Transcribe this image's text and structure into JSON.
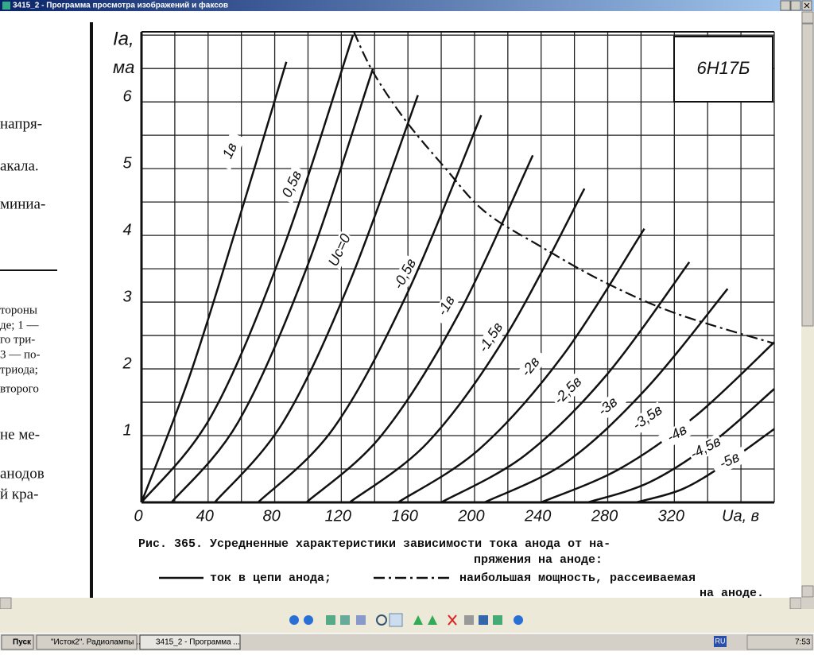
{
  "window": {
    "title": "3415_2 - Программа просмотра изображений и факсов"
  },
  "left_text": [
    "напря-",
    "акала.",
    "миниа-",
    "тороны",
    "де; 1 —",
    "го три-",
    "3 — по-",
    "триода;",
    "второго",
    "не ме-",
    "анодов",
    "й кра-"
  ],
  "chart_data": {
    "type": "line",
    "badge": "6Н17Б",
    "y_label": "Iа,",
    "y_unit": "ма",
    "x_label": "Uа, в",
    "color": "#111111",
    "xlim": [
      0,
      380
    ],
    "ylim": [
      0,
      7.05
    ],
    "xticks": [
      0,
      40,
      80,
      120,
      160,
      200,
      240,
      280,
      320
    ],
    "yticks": [
      1,
      2,
      3,
      4,
      5,
      6
    ],
    "grid": true,
    "series": [
      {
        "name": "1в",
        "x": [
          0,
          29,
          58,
          87
        ],
        "values": [
          0,
          1.9,
          4.2,
          6.6
        ]
      },
      {
        "name": "0,5в",
        "x": [
          0,
          42,
          85,
          127
        ],
        "values": [
          0,
          1.3,
          3.8,
          7.0
        ]
      },
      {
        "name": "Uс=0",
        "x": [
          18,
          58,
          99,
          139
        ],
        "values": [
          0,
          1.2,
          3.5,
          6.5
        ]
      },
      {
        "name": "-0,5в",
        "x": [
          44,
          85,
          125,
          166
        ],
        "values": [
          0,
          1.2,
          3.3,
          6.1
        ]
      },
      {
        "name": "-1в",
        "x": [
          70,
          115,
          159,
          204
        ],
        "values": [
          0,
          1.1,
          3.1,
          5.8
        ]
      },
      {
        "name": "-1,5в",
        "x": [
          99,
          144,
          190,
          235
        ],
        "values": [
          0,
          1.0,
          2.8,
          5.2
        ]
      },
      {
        "name": "-2в",
        "x": [
          125,
          172,
          219,
          266
        ],
        "values": [
          0,
          0.9,
          2.5,
          4.7
        ]
      },
      {
        "name": "-2,5в",
        "x": [
          154,
          203,
          253,
          302
        ],
        "values": [
          0,
          0.8,
          2.2,
          4.1
        ]
      },
      {
        "name": "-3в",
        "x": [
          180,
          230,
          279,
          329
        ],
        "values": [
          0,
          0.7,
          1.9,
          3.6
        ]
      },
      {
        "name": "-3,5в",
        "x": [
          206,
          255,
          303,
          352
        ],
        "values": [
          0,
          0.6,
          1.7,
          3.2
        ]
      },
      {
        "name": "-4в",
        "x": [
          240,
          287,
          333,
          380
        ],
        "values": [
          0,
          0.5,
          1.3,
          2.4
        ]
      },
      {
        "name": "-4,5в",
        "x": [
          268,
          305,
          343,
          380
        ],
        "values": [
          0,
          0.3,
          0.9,
          1.7
        ]
      },
      {
        "name": "-5в",
        "x": [
          297,
          325,
          352,
          380
        ],
        "values": [
          0,
          0.2,
          0.6,
          1.1
        ]
      }
    ],
    "power_curve": {
      "x": [
        127.5,
        139,
        158,
        182,
        206,
        240,
        278,
        321,
        380
      ],
      "values": [
        7.05,
        6.45,
        5.74,
        5.02,
        4.36,
        3.83,
        3.3,
        2.83,
        2.38
      ]
    },
    "caption": [
      "Рис. 365. Усредненные характеристики зависимости тока анода от на-",
      "пряжения на аноде:"
    ],
    "legend": [
      "ток в цепи анода;",
      "наибольшая мощность, рассеиваемая",
      "на аноде."
    ]
  },
  "taskbar": {
    "start": "Пуск",
    "tasks": [
      "\"Исток2\". Радиолампы ...",
      "3415_2 - Программа ..."
    ],
    "lang": "RU",
    "clock": "7:53"
  }
}
